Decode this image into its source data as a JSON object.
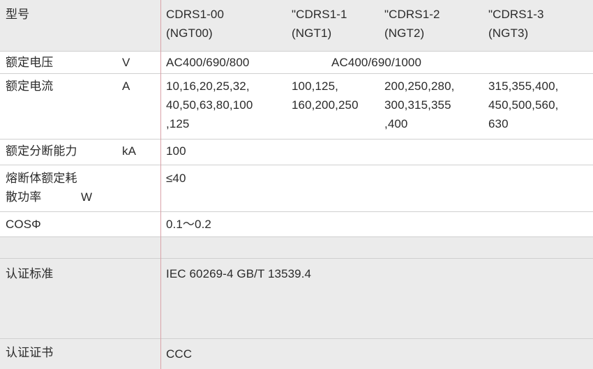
{
  "header": {
    "label": "型号",
    "models": [
      {
        "line1": "CDRS1-00",
        "line2": "(NGT00)"
      },
      {
        "line1": "\"CDRS1-1",
        "line2": "(NGT1)"
      },
      {
        "line1": "\"CDRS1-2",
        "line2": "(NGT2)"
      },
      {
        "line1": "\"CDRS1-3",
        "line2": "(NGT3)"
      }
    ]
  },
  "rated_voltage": {
    "label": "额定电压",
    "unit": "V",
    "v0": "AC400/690/800",
    "v123": "AC400/690/1000"
  },
  "rated_current": {
    "label": "额定电流",
    "unit": "A",
    "v0": [
      "10,16,20,25,32,",
      "40,50,63,80,100",
      ",125"
    ],
    "v1": [
      "100,125,",
      "160,200,250"
    ],
    "v2": [
      "200,250,280,",
      "300,315,355",
      ",400"
    ],
    "v3": [
      "315,355,400,",
      "450,500,560,",
      "630"
    ]
  },
  "breaking_capacity": {
    "label": "额定分断能力",
    "unit": "kA",
    "value": "100"
  },
  "fuse_power": {
    "label_line1": "熔断体额定耗",
    "label_line2": "散功率",
    "unit": "W",
    "value": "≤40"
  },
  "cos_phi": {
    "label": "COSΦ",
    "value": "0.1～0.2"
  },
  "standard": {
    "label": "认证标准",
    "value": "IEC 60269-4  GB/T 13539.4"
  },
  "certificate": {
    "label": "认证证书",
    "value": "CCC"
  }
}
